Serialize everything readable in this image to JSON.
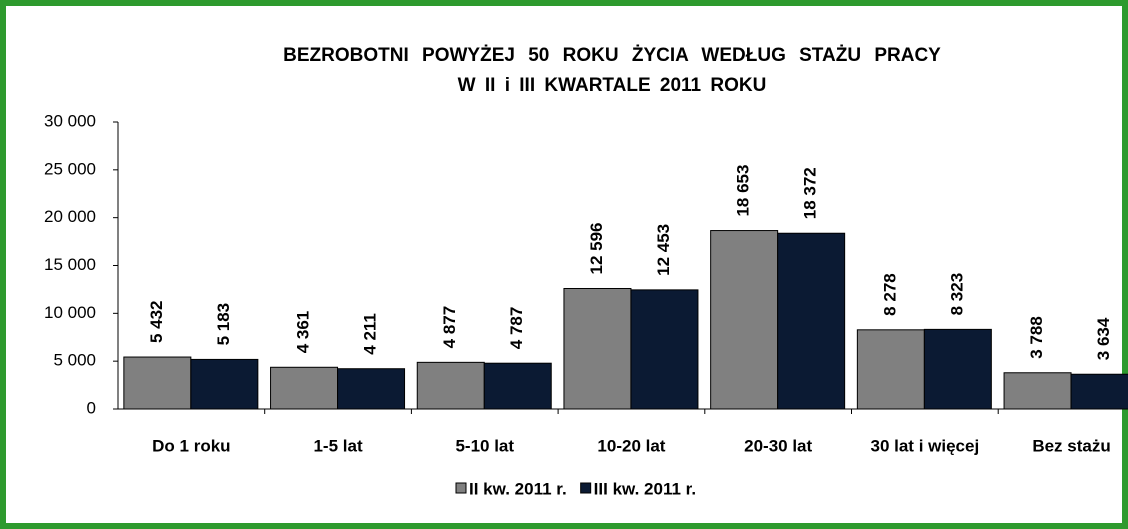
{
  "chart_data": {
    "type": "bar",
    "title": [
      "BEZROBOTNI POWYŻEJ 50 ROKU ŻYCIA WEDŁUG STAŻU PRACY",
      "W II i III KWARTALE 2011 ROKU"
    ],
    "categories": [
      "Do 1 roku",
      "1-5 lat",
      "5-10 lat",
      "10-20 lat",
      "20-30 lat",
      "30 lat i więcej",
      "Bez stażu"
    ],
    "series": [
      {
        "name": "II kw. 2011 r.",
        "color": "#808080",
        "values": [
          5432,
          4361,
          4877,
          12596,
          18653,
          8278,
          3788
        ],
        "value_labels": [
          "5 432",
          "4 361",
          "4 877",
          "12 596",
          "18 653",
          "8 278",
          "3 788"
        ]
      },
      {
        "name": "III kw. 2011 r.",
        "color": "#0b1a33",
        "values": [
          5183,
          4211,
          4787,
          12453,
          18372,
          8323,
          3634
        ],
        "value_labels": [
          "5 183",
          "4 211",
          "4 787",
          "12 453",
          "18 372",
          "8 323",
          "3 634"
        ]
      }
    ],
    "ylim": [
      0,
      30000
    ],
    "yticks": [
      0,
      {
        "value": 5000,
        "label": "5 000"
      },
      {
        "value": 10000,
        "label": "10 000"
      },
      {
        "value": 15000,
        "label": "15 000"
      },
      {
        "value": 20000,
        "label": "20 000"
      },
      {
        "value": 25000,
        "label": "25 000"
      },
      {
        "value": 30000,
        "label": "30 000"
      }
    ],
    "legend": "bottom"
  }
}
